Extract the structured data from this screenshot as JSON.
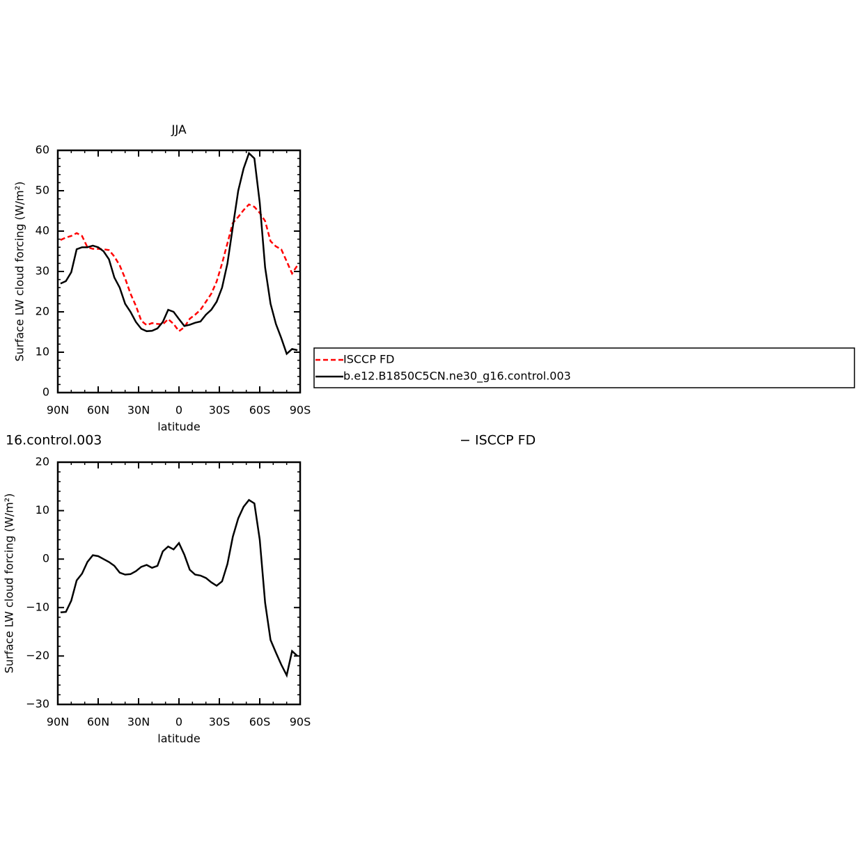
{
  "chart_data": [
    {
      "type": "line",
      "title": "JJA",
      "xlabel": "latitude",
      "ylabel": "Surface LW cloud forcing (W/m²)",
      "x": [
        88,
        84,
        80,
        76,
        72,
        68,
        64,
        60,
        56,
        52,
        48,
        44,
        40,
        36,
        32,
        28,
        24,
        20,
        16,
        12,
        8,
        4,
        0,
        -4,
        -8,
        -12,
        -16,
        -20,
        -24,
        -28,
        -32,
        -36,
        -40,
        -44,
        -48,
        -52,
        -56,
        -60,
        -64,
        -68,
        -72,
        -76,
        -80,
        -84,
        -88
      ],
      "series": [
        {
          "name": "ISCCP FD",
          "color": "#ff0000",
          "dash": true,
          "values": [
            37.8,
            38.4,
            38.8,
            39.5,
            38.8,
            36,
            35.6,
            35.6,
            35.5,
            35.3,
            33.7,
            31.5,
            28.3,
            24.5,
            21.5,
            17.8,
            16.7,
            17.2,
            17,
            16.9,
            18.2,
            17,
            15.2,
            16.2,
            18.3,
            19.3,
            20.5,
            22.5,
            24.5,
            27.5,
            32,
            37,
            42,
            43.5,
            45.2,
            46.6,
            46,
            44.5,
            42.5,
            37.5,
            36.2,
            35.5,
            32.5,
            29.5,
            31.5
          ]
        },
        {
          "name": "b.e12.B1850C5CN.ne30_g16.control.003",
          "color": "#000000",
          "dash": false,
          "values": [
            27,
            27.6,
            29.8,
            35.5,
            36,
            36,
            36.4,
            36,
            35,
            33,
            28.5,
            26,
            22,
            20,
            17.5,
            15.8,
            15.2,
            15.3,
            15.9,
            17.5,
            20.5,
            20,
            18.2,
            16.5,
            16.8,
            17.3,
            17.6,
            19.3,
            20.5,
            22.5,
            26,
            32,
            41,
            50,
            55.5,
            59.3,
            58,
            47,
            31,
            22,
            17,
            13.5,
            9.6,
            10.8,
            10.5
          ]
        }
      ],
      "xlim": [
        90,
        -90
      ],
      "xticks": [
        {
          "value": 90,
          "label": "90N"
        },
        {
          "value": 60,
          "label": "60N"
        },
        {
          "value": 30,
          "label": "30N"
        },
        0,
        {
          "value": -30,
          "label": "30S"
        },
        {
          "value": -60,
          "label": "60S"
        },
        {
          "value": -90,
          "label": "90S"
        }
      ],
      "xticks_minor": [
        80,
        70,
        50,
        40,
        20,
        10,
        -10,
        -20,
        -40,
        -50,
        -70,
        -80
      ],
      "ylim": [
        0,
        60
      ],
      "yticks": [
        0,
        10,
        20,
        30,
        40,
        50,
        60
      ],
      "yticks_minor": [
        2,
        4,
        6,
        8,
        12,
        14,
        16,
        18,
        22,
        24,
        26,
        28,
        32,
        34,
        36,
        38,
        42,
        44,
        46,
        48,
        52,
        54,
        56,
        58
      ],
      "legend": true
    },
    {
      "type": "line",
      "title_left": "16.control.003",
      "title_right": "− ISCCP FD",
      "xlabel": "latitude",
      "ylabel": "Surface LW cloud forcing (W/m²)",
      "x": [
        88,
        84,
        80,
        76,
        72,
        68,
        64,
        60,
        56,
        52,
        48,
        44,
        40,
        36,
        32,
        28,
        24,
        20,
        16,
        12,
        8,
        4,
        0,
        -4,
        -8,
        -12,
        -16,
        -20,
        -24,
        -28,
        -32,
        -36,
        -40,
        -44,
        -48,
        -52,
        -56,
        -60,
        -64,
        -68,
        -72,
        -76,
        -80,
        -84,
        -88
      ],
      "series": [
        {
          "color": "#000000",
          "dash": false,
          "values": [
            -11,
            -10.9,
            -8.6,
            -4.4,
            -3,
            -0.6,
            0.8,
            0.6,
            0,
            -0.6,
            -1.4,
            -2.8,
            -3.2,
            -3.1,
            -2.5,
            -1.6,
            -1.2,
            -1.8,
            -1.4,
            1.6,
            2.6,
            2,
            3.3,
            0.9,
            -2.2,
            -3.2,
            -3.4,
            -3.9,
            -4.8,
            -5.5,
            -4.6,
            -1,
            4.6,
            8.4,
            10.8,
            12.2,
            11.5,
            4,
            -9,
            -16.7,
            -19.3,
            -21.8,
            -24,
            -19,
            -20
          ]
        }
      ],
      "xlim": [
        90,
        -90
      ],
      "xticks": [
        {
          "value": 90,
          "label": "90N"
        },
        {
          "value": 60,
          "label": "60N"
        },
        {
          "value": 30,
          "label": "30N"
        },
        0,
        {
          "value": -30,
          "label": "30S"
        },
        {
          "value": -60,
          "label": "60S"
        },
        {
          "value": -90,
          "label": "90S"
        }
      ],
      "xticks_minor": [
        80,
        70,
        50,
        40,
        20,
        10,
        -10,
        -20,
        -40,
        -50,
        -70,
        -80
      ],
      "ylim": [
        -30,
        20
      ],
      "yticks": [
        {
          "value": -30,
          "label": "−30"
        },
        {
          "value": -20,
          "label": "−20"
        },
        {
          "value": -10,
          "label": "−10"
        },
        0,
        10,
        20
      ],
      "yticks_minor": [
        -28,
        -26,
        -24,
        -22,
        -18,
        -16,
        -14,
        -12,
        -8,
        -6,
        -4,
        -2,
        2,
        4,
        6,
        8,
        12,
        14,
        16,
        18
      ],
      "legend": false
    }
  ]
}
